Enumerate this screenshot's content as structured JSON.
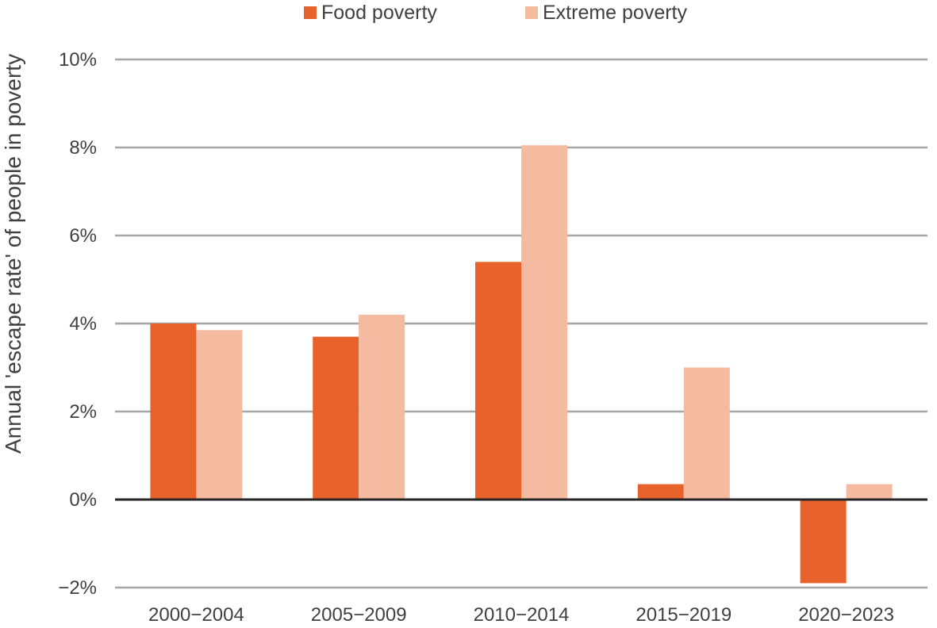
{
  "chart_data": {
    "type": "bar",
    "title": "",
    "ylabel": "Annual 'escape rate' of people in poverty",
    "xlabel": "",
    "categories": [
      "2000−2004",
      "2005−2009",
      "2010−2014",
      "2015−2019",
      "2020−2023"
    ],
    "series": [
      {
        "name": "Food poverty",
        "color": "#E8632C",
        "values": [
          4.0,
          3.7,
          5.4,
          0.35,
          -1.9
        ]
      },
      {
        "name": "Extreme poverty",
        "color": "#F4BBA0",
        "values": [
          3.85,
          4.2,
          8.05,
          3.0,
          0.35
        ]
      }
    ],
    "ylim": [
      -2,
      10
    ],
    "yticks": [
      -2,
      0,
      2,
      4,
      6,
      8,
      10
    ],
    "ytick_labels": [
      "−2%",
      "0%",
      "2%",
      "4%",
      "6%",
      "8%",
      "10%"
    ],
    "grid": true,
    "legend_position": "top-center"
  }
}
